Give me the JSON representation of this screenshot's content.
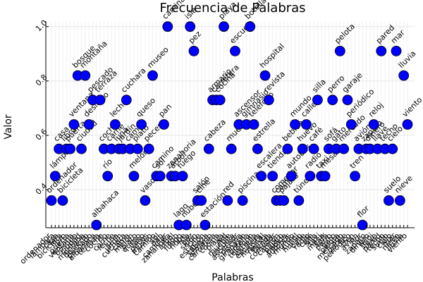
{
  "chart_data": {
    "type": "scatter",
    "title": "Frecuencia de Palabras",
    "x_label": "Palabras",
    "y_label": "Valor",
    "categories": [
      "ordenador",
      "lámpara",
      "casa",
      "bicicleta",
      "libro",
      "puerta",
      "ventana",
      "bosque",
      "ciudad",
      "montaña",
      "desierto",
      "pescado",
      "albahaca",
      "terraza",
      "coche",
      "río",
      "carne",
      "leche",
      "luna",
      "jardín",
      "cuchara",
      "cama",
      "melón",
      "plato",
      "queso",
      "vaso",
      "peces",
      "museo",
      "camino",
      "sol",
      "pan",
      "caminar",
      "zanahoria",
      "árbol",
      "lago",
      "fuego",
      "nube",
      "isla",
      "pez",
      "salón",
      "cine",
      "estación",
      "cabeza",
      "armario",
      "carretera",
      "cocina",
      "playa",
      "red",
      "mueble",
      "escuela",
      "ascensor",
      "piscina",
      "gimnasio",
      "botella",
      "teléfono",
      "estrella",
      "escalera",
      "hospital",
      "revista",
      "tienda",
      "comedor",
      "camión",
      "pájaro",
      "bebida",
      "autobús",
      "mundo",
      "túnel",
      "huevo",
      "calle",
      "radio",
      "café",
      "silla",
      "taxi",
      "mesa",
      "sofá",
      "perro",
      "gato",
      "pelota",
      "mercado",
      "garaje",
      "periódico",
      "tren",
      "avión",
      "flor",
      "zapato",
      "dinero",
      "reloj",
      "llave",
      "pared",
      "techo",
      "suelo",
      "cielo",
      "mar",
      "nieve",
      "lluvia",
      "viento"
    ],
    "values": [
      0.36,
      0.45,
      0.55,
      0.36,
      0.55,
      0.55,
      0.64,
      0.82,
      0.55,
      0.82,
      0.64,
      0.73,
      0.27,
      0.73,
      0.55,
      0.45,
      0.55,
      0.64,
      0.55,
      0.55,
      0.73,
      0.55,
      0.45,
      0.55,
      0.64,
      0.36,
      0.55,
      0.82,
      0.45,
      0.45,
      0.64,
      1.0,
      0.45,
      0.45,
      0.27,
      0.45,
      0.27,
      1.0,
      0.91,
      0.36,
      0.36,
      0.27,
      0.55,
      0.73,
      0.73,
      0.73,
      1.0,
      0.36,
      0.55,
      0.91,
      0.64,
      0.36,
      0.64,
      1.0,
      0.64,
      0.55,
      0.45,
      0.82,
      0.73,
      0.45,
      0.36,
      0.36,
      0.36,
      0.55,
      0.45,
      0.64,
      0.36,
      0.55,
      0.64,
      0.45,
      0.55,
      0.73,
      0.45,
      0.45,
      0.55,
      0.73,
      0.55,
      0.91,
      0.55,
      0.73,
      0.64,
      0.45,
      0.55,
      0.27,
      0.55,
      0.55,
      0.64,
      0.55,
      0.91,
      0.55,
      0.36,
      0.55,
      0.91,
      0.36,
      0.82,
      0.64
    ],
    "color": "#0000ff",
    "ylim": [
      0.26,
      1.02
    ],
    "yticks": [
      0.4,
      0.6,
      0.8,
      {
        "value": 1,
        "label": "1.0"
      }
    ],
    "grid": true
  }
}
